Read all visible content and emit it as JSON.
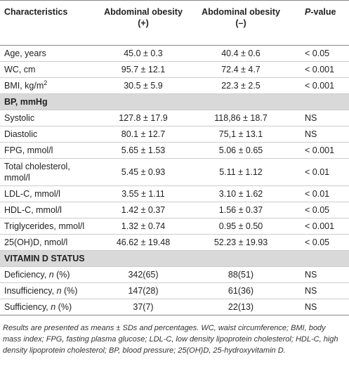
{
  "table": {
    "header": [
      [
        "Characteristics"
      ],
      [
        "Abdominal obesity",
        "(+)"
      ],
      [
        "Abdominal obesity",
        "(–)"
      ],
      [
        {
          "italic": "P",
          "suffix": "-value"
        }
      ]
    ],
    "rows": [
      {
        "cells": [
          "Age, years",
          "45.0 ± 0.3",
          "40.4 ± 0.6",
          "< 0.05"
        ]
      },
      {
        "cells": [
          "WC, cm",
          "95.7 ± 12.1",
          "72.4 ± 4.7",
          "< 0.001"
        ]
      },
      {
        "cells": [
          {
            "text": "BMI, kg/m",
            "sup": "2"
          },
          "30.5 ± 5.9",
          "22.3 ± 2.5",
          "< 0.001"
        ]
      },
      {
        "section": "BP, mmHg"
      },
      {
        "cells": [
          "Systolic",
          "127.8 ± 17.9",
          "118,86 ± 18.7",
          "NS"
        ]
      },
      {
        "cells": [
          "Diastolic",
          "80.1 ± 12.7",
          "75,1 ± 13.1",
          "NS"
        ]
      },
      {
        "cells": [
          "FPG, mmol/l",
          "5.65 ± 1.53",
          "5.06 ± 0.65",
          "< 0.001"
        ]
      },
      {
        "cells": [
          "Total cholesterol, mmol/l",
          "5.45 ± 0.93",
          "5.11 ± 1.12",
          "< 0.01"
        ]
      },
      {
        "cells": [
          "LDL-C, mmol/l",
          "3.55 ± 1.11",
          "3.10 ± 1.62",
          "< 0.01"
        ]
      },
      {
        "cells": [
          "HDL-C, mmol/l",
          "1.42 ± 0.37",
          "1.56 ± 0.37",
          "< 0.05"
        ]
      },
      {
        "cells": [
          "Triglycerides, mmol/l",
          "1.32 ± 0.74",
          "0.95 ± 0.50",
          "< 0.001"
        ]
      },
      {
        "cells": [
          "25(OH)D, nmol/l",
          "46.62 ± 19.48",
          "52.23 ± 19.93",
          "< 0.05"
        ]
      },
      {
        "section": "VITAMIN D STATUS"
      },
      {
        "cells": [
          {
            "text": "Deficiency, ",
            "italic": "n",
            "suffix": " (%)"
          },
          "342(65)",
          "88(51)",
          "NS"
        ]
      },
      {
        "cells": [
          {
            "text": "Insufficiency, ",
            "italic": "n",
            "suffix": " (%)"
          },
          "147(28)",
          "61(36)",
          "NS"
        ]
      },
      {
        "cells": [
          {
            "text": "Sufficiency, ",
            "italic": "n",
            "suffix": " (%)"
          },
          "37(7)",
          "22(13)",
          "NS"
        ]
      }
    ],
    "footnote": "Results are presented as means ± SDs and percentages. WC, waist circumference; BMI, body mass index; FPG, fasting plasma glucose; LDL-C, low density lipoprotein cholesterol; HDL-C, high density lipoprotein cholesterol; BP, blood pressure; 25(OH)D, 25-hydroxyvitamin D."
  }
}
